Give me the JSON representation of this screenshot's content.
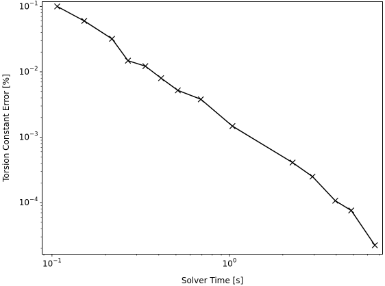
{
  "chart_data": {
    "type": "line",
    "title": "",
    "xlabel": "Solver Time [s]",
    "ylabel": "Torsion Constant Error [%]",
    "xscale": "log",
    "yscale": "log",
    "xlim": [
      0.088,
      7.3
    ],
    "ylim": [
      1.63e-05,
      0.118
    ],
    "grid": false,
    "legend": "none",
    "line_color": "#000000",
    "marker": "x",
    "x_ticks": [
      {
        "value": 0.1,
        "base": "10",
        "exp": "−1"
      },
      {
        "value": 1,
        "base": "10",
        "exp": "0"
      }
    ],
    "y_ticks": [
      {
        "value": 0.0001,
        "base": "10",
        "exp": "−4"
      },
      {
        "value": 0.001,
        "base": "10",
        "exp": "−3"
      },
      {
        "value": 0.01,
        "base": "10",
        "exp": "−2"
      },
      {
        "value": 0.1,
        "base": "10",
        "exp": "−1"
      }
    ],
    "series": [
      {
        "x": [
          0.107,
          0.152,
          0.218,
          0.268,
          0.336,
          0.412,
          0.512,
          0.69,
          1.04,
          2.27,
          2.94,
          3.95,
          4.86,
          6.6
        ],
        "y": [
          0.1,
          0.06,
          0.032,
          0.0148,
          0.0122,
          0.008,
          0.0052,
          0.0038,
          0.00148,
          0.00041,
          0.00025,
          0.000107,
          7.6e-05,
          2.23e-05
        ]
      }
    ]
  }
}
